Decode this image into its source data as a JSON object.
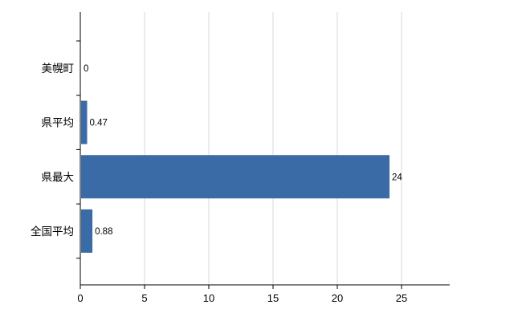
{
  "chart_data": {
    "type": "bar",
    "orientation": "horizontal",
    "title": "",
    "xlabel": "",
    "ylabel": "",
    "categories": [
      "美幌町",
      "県平均",
      "県最大",
      "全国平均"
    ],
    "values": [
      0,
      0.47,
      24,
      0.88
    ],
    "value_labels": [
      "0",
      "0.47",
      "24",
      "0.88"
    ],
    "x_ticks": [
      0,
      5,
      10,
      15,
      20,
      25
    ],
    "x_tick_labels": [
      "0",
      "5",
      "10",
      "15",
      "20",
      "25"
    ],
    "xlim": [
      0,
      28.75
    ],
    "grid": "vertical-only",
    "legend": "none",
    "bar_color": "#3a6ba6",
    "grid_color": "#d9d9d9",
    "axis_color": "#000000",
    "text_color": "#000000",
    "background": "#ffffff"
  }
}
